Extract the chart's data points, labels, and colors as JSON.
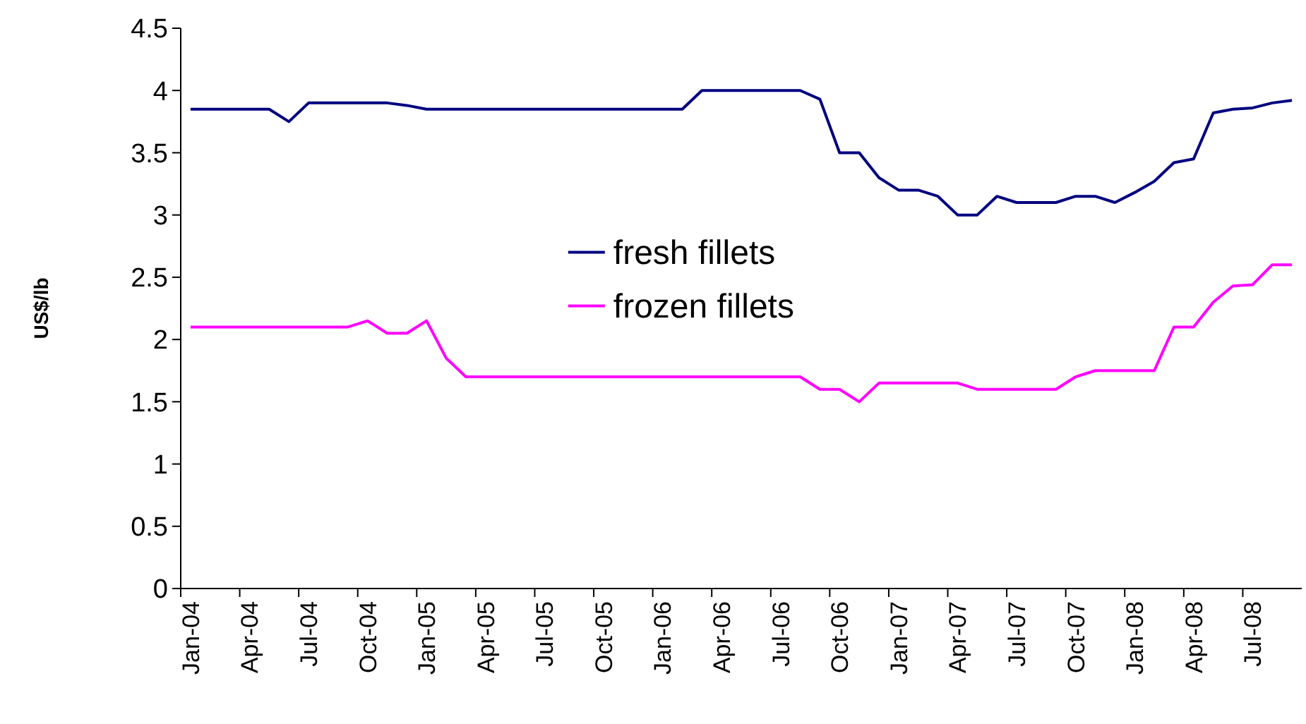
{
  "chart_data": {
    "type": "line",
    "ylabel": "US$/lb",
    "categories": [
      "Jan-04",
      null,
      null,
      "Apr-04",
      null,
      null,
      "Jul-04",
      null,
      null,
      "Oct-04",
      null,
      null,
      "Jan-05",
      null,
      null,
      "Apr-05",
      null,
      null,
      "Jul-05",
      null,
      null,
      "Oct-05",
      null,
      null,
      "Jan-06",
      null,
      null,
      "Apr-06",
      null,
      null,
      "Jul-06",
      null,
      null,
      "Oct-06",
      null,
      null,
      "Jan-07",
      null,
      null,
      "Apr-07",
      null,
      null,
      "Jul-07",
      null,
      null,
      "Oct-07",
      null,
      null,
      "Jan-08",
      null,
      null,
      "Apr-08",
      null,
      null,
      "Jul-08",
      null,
      null
    ],
    "series": [
      {
        "name": "fresh fillets",
        "color": "#000080",
        "values": [
          3.85,
          3.85,
          3.85,
          3.85,
          3.85,
          3.75,
          3.9,
          3.9,
          3.9,
          3.9,
          3.9,
          3.88,
          3.85,
          3.85,
          3.85,
          3.85,
          3.85,
          3.85,
          3.85,
          3.85,
          3.85,
          3.85,
          3.85,
          3.85,
          3.85,
          3.85,
          4.0,
          4.0,
          4.0,
          4.0,
          4.0,
          4.0,
          3.93,
          3.5,
          3.5,
          3.3,
          3.2,
          3.2,
          3.15,
          3.0,
          3.0,
          3.15,
          3.1,
          3.1,
          3.1,
          3.15,
          3.15,
          3.1,
          3.18,
          3.27,
          3.42,
          3.45,
          3.82,
          3.85,
          3.86,
          3.9,
          3.92
        ]
      },
      {
        "name": "frozen fillets",
        "color": "#ff00ff",
        "values": [
          2.1,
          2.1,
          2.1,
          2.1,
          2.1,
          2.1,
          2.1,
          2.1,
          2.1,
          2.15,
          2.05,
          2.05,
          2.15,
          1.85,
          1.7,
          1.7,
          1.7,
          1.7,
          1.7,
          1.7,
          1.7,
          1.7,
          1.7,
          1.7,
          1.7,
          1.7,
          1.7,
          1.7,
          1.7,
          1.7,
          1.7,
          1.7,
          1.6,
          1.6,
          1.5,
          1.65,
          1.65,
          1.65,
          1.65,
          1.65,
          1.6,
          1.6,
          1.6,
          1.6,
          1.6,
          1.7,
          1.75,
          1.75,
          1.75,
          1.75,
          2.1,
          2.1,
          2.3,
          2.43,
          2.44,
          2.6,
          2.6
        ]
      }
    ],
    "ylim": [
      0,
      4.5
    ],
    "yticks": [
      0,
      0.5,
      1,
      1.5,
      2,
      2.5,
      3,
      3.5,
      4,
      4.5
    ],
    "legend": "center",
    "marker": "none",
    "line_style": "solid",
    "grid": false
  }
}
